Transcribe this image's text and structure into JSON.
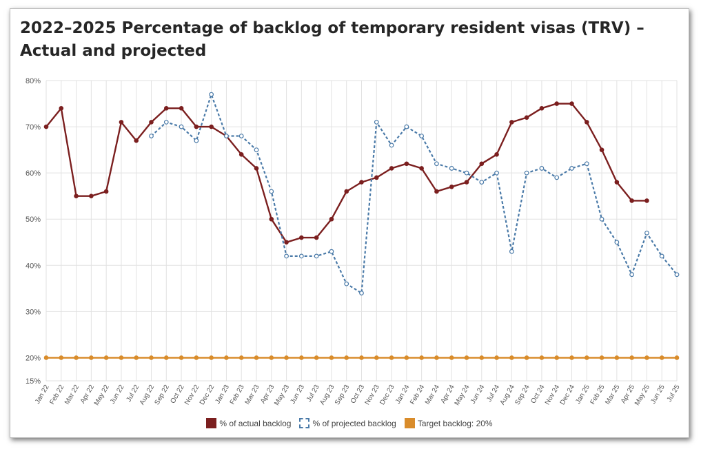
{
  "title": "2022–2025 Percentage of backlog of temporary resident visas (TRV) – Actual and projected",
  "colors": {
    "actual": "#7b1f1f",
    "projected": "#4a7aa8",
    "target": "#d98c2b",
    "grid": "#e2e2e2"
  },
  "chart_data": {
    "type": "line",
    "title": "2022–2025 Percentage of backlog of temporary resident visas (TRV) – Actual and projected",
    "xlabel": "",
    "ylabel": "",
    "ylim": [
      15,
      80
    ],
    "yticks": [
      15,
      20,
      30,
      40,
      50,
      60,
      70,
      80
    ],
    "ytick_labels": [
      "15%",
      "20%",
      "30%",
      "40%",
      "50%",
      "60%",
      "70%",
      "80%"
    ],
    "grid": true,
    "legend_position": "bottom",
    "categories": [
      "Jan 22",
      "Feb 22",
      "Mar 22",
      "Apr 22",
      "May 22",
      "Jun 22",
      "Jul 22",
      "Aug 22",
      "Sep 22",
      "Oct 22",
      "Nov 22",
      "Dec 22",
      "Jan 23",
      "Feb 23",
      "Mar 23",
      "Apr 23",
      "May 23",
      "Jun 23",
      "Jul 23",
      "Aug 23",
      "Sep 23",
      "Oct 23",
      "Nov 23",
      "Dec 23",
      "Jan 24",
      "Feb 24",
      "Mar 24",
      "Apr 24",
      "May 24",
      "Jun 24",
      "Jul 24",
      "Aug 24",
      "Sep 24",
      "Oct 24",
      "Nov 24",
      "Dec 24",
      "Jan 25",
      "Feb 25",
      "Mar 25",
      "Apr 25",
      "May 25",
      "Jun 25",
      "Jul 25"
    ],
    "series": [
      {
        "name": "% of actual backlog",
        "style": "solid",
        "values": [
          70,
          74,
          55,
          55,
          56,
          71,
          67,
          71,
          74,
          74,
          70,
          70,
          68,
          64,
          61,
          50,
          45,
          46,
          46,
          50,
          56,
          58,
          59,
          61,
          62,
          61,
          56,
          57,
          58,
          62,
          64,
          71,
          72,
          74,
          75,
          75,
          71,
          65,
          58,
          54,
          54,
          null,
          null
        ]
      },
      {
        "name": "% of projected backlog",
        "style": "dashed",
        "values": [
          null,
          null,
          null,
          null,
          null,
          null,
          null,
          68,
          71,
          70,
          67,
          77,
          68,
          68,
          65,
          56,
          42,
          42,
          42,
          43,
          36,
          34,
          71,
          66,
          70,
          68,
          62,
          61,
          60,
          58,
          60,
          43,
          60,
          61,
          59,
          61,
          62,
          50,
          45,
          38,
          47,
          42,
          38
        ]
      },
      {
        "name": "Target backlog: 20%",
        "style": "solid",
        "values": [
          20,
          20,
          20,
          20,
          20,
          20,
          20,
          20,
          20,
          20,
          20,
          20,
          20,
          20,
          20,
          20,
          20,
          20,
          20,
          20,
          20,
          20,
          20,
          20,
          20,
          20,
          20,
          20,
          20,
          20,
          20,
          20,
          20,
          20,
          20,
          20,
          20,
          20,
          20,
          20,
          20,
          20,
          20
        ]
      }
    ]
  }
}
